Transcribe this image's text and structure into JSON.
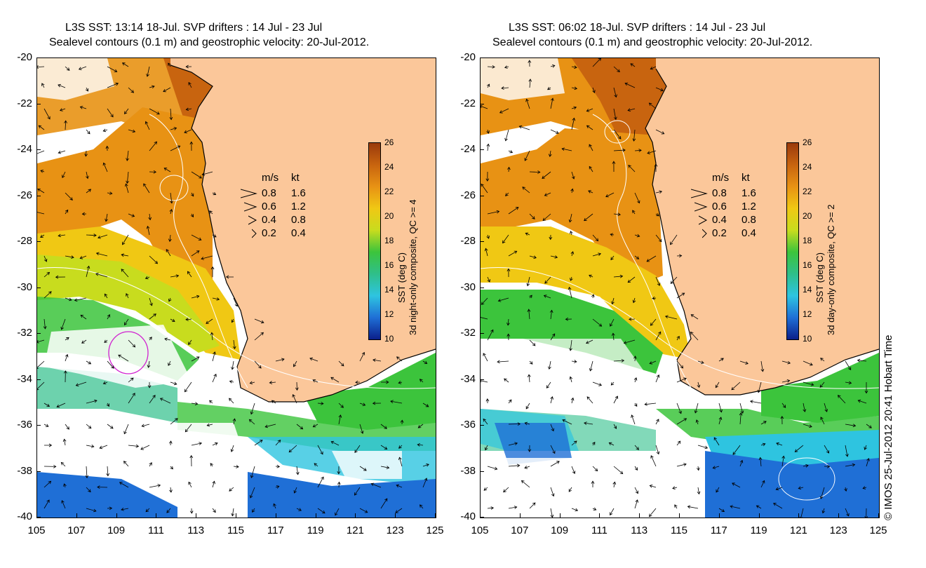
{
  "left_panel": {
    "title_line1": "L3S SST: 13:14 18-Jul. SVP drifters : 14 Jul - 23 Jul",
    "title_line2": "Sealevel contours (0.1 m) and geostrophic velocity: 20-Jul-2012.",
    "colorbar_label_line1": "SST (deg C)",
    "colorbar_label_line2": "3d night-only composite, QC >= 4"
  },
  "right_panel": {
    "title_line1": "L3S SST: 06:02 18-Jul. SVP drifters : 14 Jul - 23 Jul",
    "title_line2": "Sealevel contours (0.1 m) and geostrophic velocity: 20-Jul-2012.",
    "colorbar_label_line1": "SST (deg C)",
    "colorbar_label_line2": "3d day-only composite, QC >= 2"
  },
  "axes": {
    "y_ticks": [
      "-20",
      "-22",
      "-24",
      "-26",
      "-28",
      "-30",
      "-32",
      "-34",
      "-36",
      "-38",
      "-40"
    ],
    "x_ticks": [
      "105",
      "107",
      "109",
      "111",
      "113",
      "115",
      "117",
      "119",
      "121",
      "123",
      "125"
    ],
    "lat_range": [
      -40,
      -20
    ],
    "lon_range": [
      105,
      125
    ]
  },
  "colorbar": {
    "ticks": [
      "26",
      "24",
      "22",
      "20",
      "18",
      "16",
      "14",
      "12",
      "10"
    ],
    "range": [
      10,
      26
    ],
    "colors": [
      "#0b1f8a",
      "#1f6fd6",
      "#2ec4e0",
      "#2fbf8a",
      "#3cc43c",
      "#c8dc1e",
      "#f0c814",
      "#e89214",
      "#c8640f",
      "#9a3a0c"
    ]
  },
  "legend": {
    "header_units1": "m/s",
    "header_units2": "kt",
    "rows": [
      {
        "ms": "0.8",
        "kt": "1.6"
      },
      {
        "ms": "0.6",
        "kt": "1.2"
      },
      {
        "ms": "0.4",
        "kt": "0.8"
      },
      {
        "ms": "0.2",
        "kt": "0.4"
      }
    ]
  },
  "credit": "© IMOS 25-Jul-2012 20:41 Hobart Time",
  "colors": {
    "land": "#fbc79a",
    "warm": "#c8640f",
    "orange": "#e89214",
    "yellow": "#f0c814",
    "green": "#3cc43c",
    "teal": "#2fbf8a",
    "cyan": "#2ec4e0",
    "blue": "#1f6fd6",
    "navy": "#0b1f8a"
  }
}
